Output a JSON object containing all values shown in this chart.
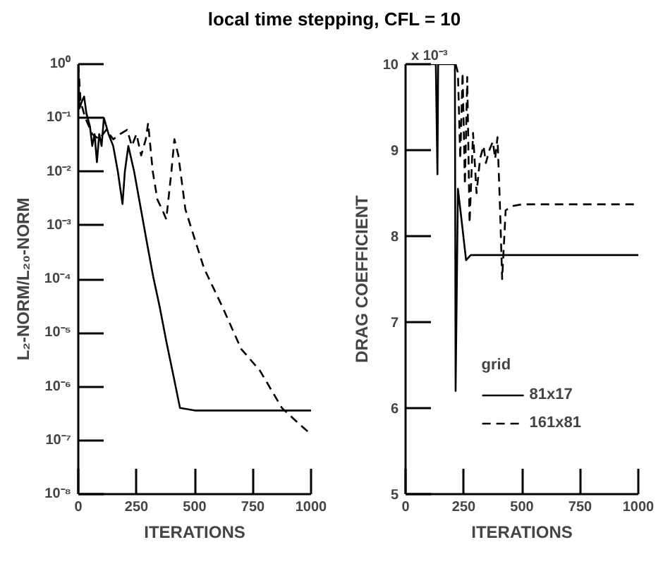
{
  "chart_data": [
    {
      "type": "line",
      "title": "local time stepping, CFL = 10",
      "xlabel": "ITERATIONS",
      "ylabel": "L₂-NORM/L₂₀-NORM",
      "log": "y",
      "grid": false,
      "xlim": [
        0,
        1000
      ],
      "xticks": [
        0,
        250,
        500,
        750,
        1000
      ],
      "ylim": [
        1e-08,
        1
      ],
      "yticks": [
        {
          "value": 1,
          "label": "10⁰"
        },
        {
          "value": 0.1,
          "label": "10⁻¹"
        },
        {
          "value": 0.01,
          "label": "10⁻²"
        },
        {
          "value": 0.001,
          "label": "10⁻³"
        },
        {
          "value": 0.0001,
          "label": "10⁻⁴"
        },
        {
          "value": 1e-05,
          "label": "10⁻⁵"
        },
        {
          "value": 1e-06,
          "label": "10⁻⁶"
        },
        {
          "value": 1e-07,
          "label": "10⁻⁷"
        },
        {
          "value": 1e-08,
          "label": "10⁻⁸"
        }
      ],
      "series": [
        {
          "color": "#000000",
          "line_style": "solid",
          "x": [
            0,
            5,
            15,
            25,
            35,
            50,
            60,
            70,
            80,
            90,
            100,
            110,
            130,
            150,
            170,
            190,
            200,
            215,
            240,
            270,
            298,
            322,
            350,
            378,
            410,
            437,
            500,
            1000
          ],
          "values": [
            1,
            0.15,
            0.2,
            0.25,
            0.12,
            0.07,
            0.03,
            0.05,
            0.015,
            0.05,
            0.03,
            0.1,
            0.05,
            0.03,
            0.01,
            0.0025,
            0.01,
            0.03,
            0.01,
            0.0019,
            0.0004,
            0.00011,
            3e-05,
            7e-06,
            1.5e-06,
            4e-07,
            3.6e-07,
            3.6e-07
          ]
        },
        {
          "color": "#000000",
          "line_style": "dashed",
          "x": [
            0,
            10,
            30,
            60,
            90,
            120,
            150,
            180,
            210,
            230,
            250,
            270,
            290,
            300,
            320,
            340,
            360,
            378,
            400,
            413,
            430,
            460,
            485,
            540,
            620,
            700,
            780,
            875,
            950,
            1000
          ],
          "values": [
            1,
            0.2,
            0.1,
            0.05,
            0.04,
            0.06,
            0.04,
            0.05,
            0.06,
            0.03,
            0.05,
            0.02,
            0.04,
            0.08,
            0.01,
            0.003,
            0.002,
            0.0013,
            0.01,
            0.04,
            0.02,
            0.002,
            0.0009,
            0.00016,
            3e-05,
            5e-06,
            2e-06,
            4e-07,
            2e-07,
            1.3e-07
          ]
        }
      ]
    },
    {
      "type": "line",
      "xlabel": "ITERATIONS",
      "ylabel": "DRAG COEFFICIENT",
      "grid": false,
      "legend": "bottom right",
      "legend_title": "grid",
      "xlim": [
        0,
        1000
      ],
      "xticks": [
        0,
        250,
        500,
        750,
        1000
      ],
      "ylim": [
        5,
        10
      ],
      "yticks": [
        5,
        6,
        7,
        8,
        9,
        10
      ],
      "annotations": [
        "x 10⁻³"
      ],
      "series": [
        {
          "name": "81x17",
          "color": "#000000",
          "line_style": "solid",
          "x": [
            0,
            130,
            137,
            140,
            212,
            215,
            225,
            240,
            260,
            280,
            1000
          ],
          "values": [
            10,
            10,
            8.72,
            10,
            10,
            6.2,
            8.55,
            8.2,
            7.72,
            7.78,
            7.78
          ]
        },
        {
          "name": "161x81",
          "color": "#000000",
          "line_style": "dashed",
          "x": [
            215,
            225,
            235,
            245,
            255,
            265,
            275,
            290,
            305,
            320,
            335,
            345,
            360,
            375,
            385,
            395,
            405,
            415,
            430,
            460,
            500,
            1000
          ],
          "values": [
            10,
            9.9,
            8.9,
            9.9,
            8.6,
            9.85,
            8.15,
            9.2,
            8.5,
            8.9,
            9.05,
            8.85,
            9.0,
            9.1,
            8.9,
            9.15,
            8.4,
            7.5,
            8.3,
            8.35,
            8.37,
            8.37
          ]
        }
      ]
    }
  ]
}
